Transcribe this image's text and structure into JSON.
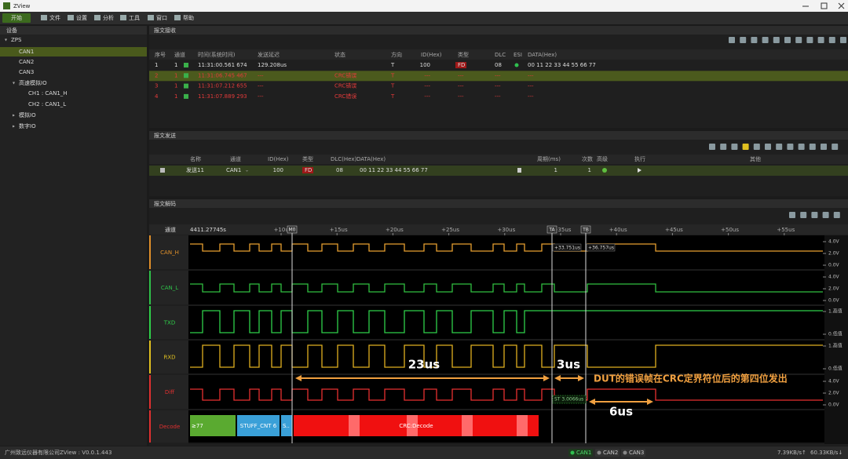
{
  "window": {
    "title": "ZView"
  },
  "toolbar": [
    "开始",
    "文件",
    "设置",
    "分析",
    "工具",
    "窗口",
    "帮助"
  ],
  "device_panel": {
    "title": "设备",
    "tree": [
      "ZPS",
      "CAN1",
      "CAN2",
      "CAN3",
      "高速模拟IO",
      "CH1 : CAN1_H",
      "CH2 : CAN1_L",
      "模拟IO",
      "数字IO"
    ]
  },
  "receive_panel": {
    "title": "报文接收",
    "columns": [
      "序号",
      "通道",
      "时间(系统时间)",
      "发送延迟",
      "状态",
      "方向",
      "ID(Hex)",
      "类型",
      "DLC",
      "ESI",
      "DATA(Hex)"
    ],
    "rows": [
      {
        "index": "1",
        "channel": "1",
        "time": "11:31:00.561 674",
        "delay": "129.208us",
        "direction": "T",
        "id": "100",
        "frame_type": "FD",
        "dlc": "08",
        "data": "00 11 22 33 44 55 66 77"
      },
      {
        "index": "2",
        "channel": "1",
        "time": "11:31:06.745 467",
        "delay": "---",
        "status": "CRC错误",
        "direction": "T",
        "id": "---",
        "frame_type": "---",
        "dlc": "---",
        "data": "---"
      },
      {
        "index": "3",
        "channel": "1",
        "time": "11:31:07.212 655",
        "delay": "---",
        "status": "CRC错误",
        "direction": "T",
        "id": "---",
        "frame_type": "---",
        "dlc": "---",
        "data": "---"
      },
      {
        "index": "4",
        "channel": "1",
        "time": "11:31:07.889 293",
        "delay": "---",
        "status": "CRC错误",
        "direction": "T",
        "id": "---",
        "frame_type": "---",
        "dlc": "---",
        "data": "---"
      }
    ]
  },
  "send_panel": {
    "title": "报文发送",
    "columns": [
      "名称",
      "通道",
      "ID(Hex)",
      "类型",
      "DLC(Hex)",
      "DATA(Hex)",
      "周期(ms)",
      "次数",
      "高级",
      "执行",
      "其他"
    ],
    "rows": [
      {
        "name": "发送11",
        "channel": "CAN1",
        "id": "100",
        "frame_type": "FD",
        "dlc": "08",
        "data": "00 11 22 33 44 55 66 77",
        "period": "1",
        "count": "1"
      }
    ]
  },
  "decode_panel": {
    "title": "报文解码",
    "channel_header": "通道",
    "start_time": "4411.27745s",
    "time_labels": [
      "+10us",
      "+15us",
      "+20us",
      "+25us",
      "+30us",
      "+35us",
      "+40us",
      "+45us",
      "+50us",
      "+55us"
    ],
    "markers": [
      "M0",
      "TA",
      "TB"
    ],
    "cursor_readouts": [
      "+33.751us",
      "+36.757us"
    ],
    "channels": [
      {
        "name": "CAN_H",
        "scale": [
          "4.0V",
          "2.0V",
          "0.0V"
        ]
      },
      {
        "name": "CAN_L",
        "scale": [
          "4.0V",
          "2.0V",
          "0.0V"
        ]
      },
      {
        "name": "TXD",
        "scale": [
          "1.高值",
          "0.低值"
        ]
      },
      {
        "name": "RXD",
        "scale": [
          "1.高值",
          "0.低值"
        ]
      },
      {
        "name": "Diff",
        "scale": [
          "4.0V",
          "2.0V",
          "0.0V"
        ]
      },
      {
        "name": "Decode"
      }
    ],
    "decode_segments": [
      "≥77",
      "STUFF_CNT 6",
      "S..",
      "CRC:Decode"
    ],
    "measurement": "ST 3.0066us",
    "annotations": {
      "span_a": "23us",
      "span_b": "3us",
      "span_c": "6us",
      "note": "DUT的错误帧在CRC定界符位后的第四位发出"
    }
  },
  "status_bar": {
    "company": "广州致远仪器有限公司",
    "version": "ZView : V0.0.1.443",
    "channels": [
      "CAN1",
      "CAN2",
      "CAN3"
    ],
    "upload": "7.39KB/s↑",
    "download": "60.33KB/s↓"
  }
}
